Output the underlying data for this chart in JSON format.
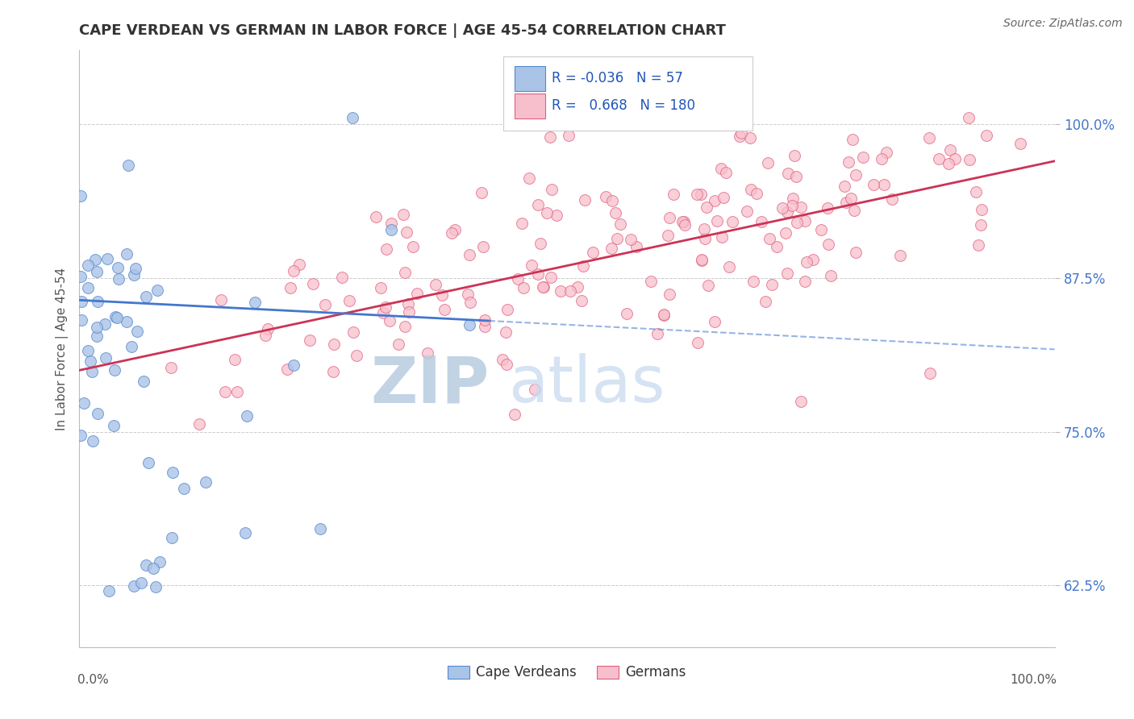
{
  "title": "CAPE VERDEAN VS GERMAN IN LABOR FORCE | AGE 45-54 CORRELATION CHART",
  "source": "Source: ZipAtlas.com",
  "ylabel": "In Labor Force | Age 45-54",
  "ytick_labels": [
    "62.5%",
    "75.0%",
    "87.5%",
    "100.0%"
  ],
  "ytick_values": [
    0.625,
    0.75,
    0.875,
    1.0
  ],
  "xrange": [
    0.0,
    1.0
  ],
  "yrange": [
    0.575,
    1.06
  ],
  "legend_blue_R": "-0.036",
  "legend_blue_N": "57",
  "legend_pink_R": "0.668",
  "legend_pink_N": "180",
  "blue_fill": "#aac4e8",
  "blue_edge": "#5588cc",
  "pink_fill": "#f7bfcc",
  "pink_edge": "#e06080",
  "blue_line_color": "#4477cc",
  "pink_line_color": "#cc3355",
  "watermark_color": "#d0dff0",
  "figsize": [
    14.06,
    8.92
  ],
  "dpi": 100
}
